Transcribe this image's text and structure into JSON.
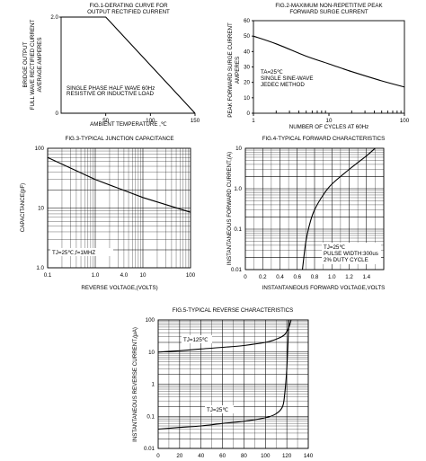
{
  "chart_data": [
    {
      "id": "fig1",
      "type": "line",
      "title": "FIG.1-DERATING CURVE FOR",
      "title2": "OUTPUT RECTIFIED CURRENT",
      "ylabel": "AVERAGE AMPERES",
      "ylabel2": "FULL WAVE RECTIFIED CURRENT",
      "ylabel3": "BRIDGE OUTPUT",
      "xlabel": "AMBIENT TEMPERATURE ,℃",
      "xlim": [
        0,
        150
      ],
      "ylim": [
        0,
        2.0
      ],
      "xticks": [
        "50",
        "100",
        "150"
      ],
      "yticks": [
        "2.0",
        "0"
      ],
      "grid": false,
      "note1": "SINGLE PHASE HALF WAVE 60Hz",
      "note2": "RESISTIVE OR INDUCTIVE LOAD",
      "series": [
        {
          "x": [
            0,
            50,
            150
          ],
          "y": [
            2.0,
            2.0,
            0
          ]
        }
      ]
    },
    {
      "id": "fig2",
      "type": "line",
      "title": "FIG.2-MAXIMUM  NON-REPETITIVE PEAK",
      "title2": "FORWARD SURGE CURRENT",
      "ylabel": "PEAK FORWARD SURGE CURRENT",
      "ylabel2": "AMPERES",
      "xlabel": "NUMBER OF CYCLES AT 60Hz",
      "xscale": "log",
      "xlim": [
        1,
        100
      ],
      "ylim": [
        0,
        60
      ],
      "xticks": [
        "1",
        "10",
        "100"
      ],
      "yticks": [
        "0",
        "10",
        "20",
        "30",
        "40",
        "50",
        "60"
      ],
      "grid": false,
      "note1": "TA=25℃",
      "note2": "SINGLE SINE-WAVE",
      "note3": "JEDEC METHOD",
      "series": [
        {
          "x": [
            1,
            2,
            5,
            10,
            20,
            50,
            100
          ],
          "y": [
            50,
            45,
            37,
            32,
            27,
            21,
            17
          ]
        }
      ]
    },
    {
      "id": "fig3",
      "type": "line",
      "title": "FIG.3-TYPICAL JUNCTION CAPACITANCE",
      "ylabel": "CAPACITANCE(pF)",
      "xlabel": "REVERSE VOLTAGE,(VOLTS)",
      "xscale": "log",
      "yscale": "log",
      "xlim": [
        0.1,
        100
      ],
      "ylim": [
        1,
        100
      ],
      "xticks": [
        "0.1",
        "1.0",
        "4.0",
        "10",
        "100"
      ],
      "yticks": [
        "100",
        "10",
        "1.0"
      ],
      "grid": true,
      "note1": "TJ=25℃,f=1MHZ",
      "series": [
        {
          "x": [
            0.1,
            1,
            10,
            100
          ],
          "y": [
            70,
            30,
            15,
            8.5
          ]
        }
      ]
    },
    {
      "id": "fig4",
      "type": "line",
      "title": "FIG.4-TYPICAL FORWARD CHARACTERISTICS",
      "ylabel": "INSTANTANEOUS FORWARD CURRENT,(A)",
      "xlabel": "INSTANTANEOUS FORWARD VOLTAGE,VOLTS",
      "yscale": "log",
      "xlim": [
        0,
        1.6
      ],
      "ylim": [
        0.01,
        10
      ],
      "xticks": [
        "0",
        "0.2",
        "0.4",
        "0.6",
        "0.8",
        "1.0",
        "1.2",
        "1.4"
      ],
      "yticks": [
        "10",
        "1.0",
        "0.1",
        "0.01"
      ],
      "grid": true,
      "note1": "TJ=25℃",
      "note2": "PULSE WIDTH:300us",
      "note3": "2% DUTY CYCLE",
      "series": [
        {
          "x": [
            0.66,
            0.7,
            0.75,
            0.8,
            0.9,
            1.0,
            1.2,
            1.4,
            1.5
          ],
          "y": [
            0.01,
            0.05,
            0.15,
            0.3,
            0.7,
            1.3,
            3.0,
            6.5,
            10
          ]
        }
      ]
    },
    {
      "id": "fig5",
      "type": "line",
      "title": "FIG.5-TYPICAL REVERSE CHARACTERISTICS",
      "ylabel": "INSTANTANEOUS REVERSE CURRENT,(μA)",
      "xlabel": "PERCENT OF RATED PEAK REVERSE VOLTAGE,(%)",
      "yscale": "log",
      "xlim": [
        0,
        140
      ],
      "ylim": [
        0.01,
        100
      ],
      "xticks": [
        "0",
        "20",
        "40",
        "60",
        "80",
        "100",
        "120",
        "140"
      ],
      "yticks": [
        "100",
        "10",
        "1",
        "0.1",
        "0.01"
      ],
      "grid": true,
      "series": [
        {
          "name": "TJ=125℃",
          "x": [
            0,
            20,
            40,
            60,
            80,
            100,
            110,
            118,
            122,
            124
          ],
          "y": [
            10,
            11,
            12.5,
            14,
            16,
            20,
            25,
            35,
            60,
            100
          ]
        },
        {
          "name": "TJ=25℃",
          "x": [
            0,
            20,
            40,
            60,
            80,
            100,
            110,
            116,
            118,
            120,
            122
          ],
          "y": [
            0.04,
            0.045,
            0.05,
            0.06,
            0.07,
            0.09,
            0.12,
            0.2,
            0.5,
            3,
            100
          ]
        }
      ]
    }
  ]
}
